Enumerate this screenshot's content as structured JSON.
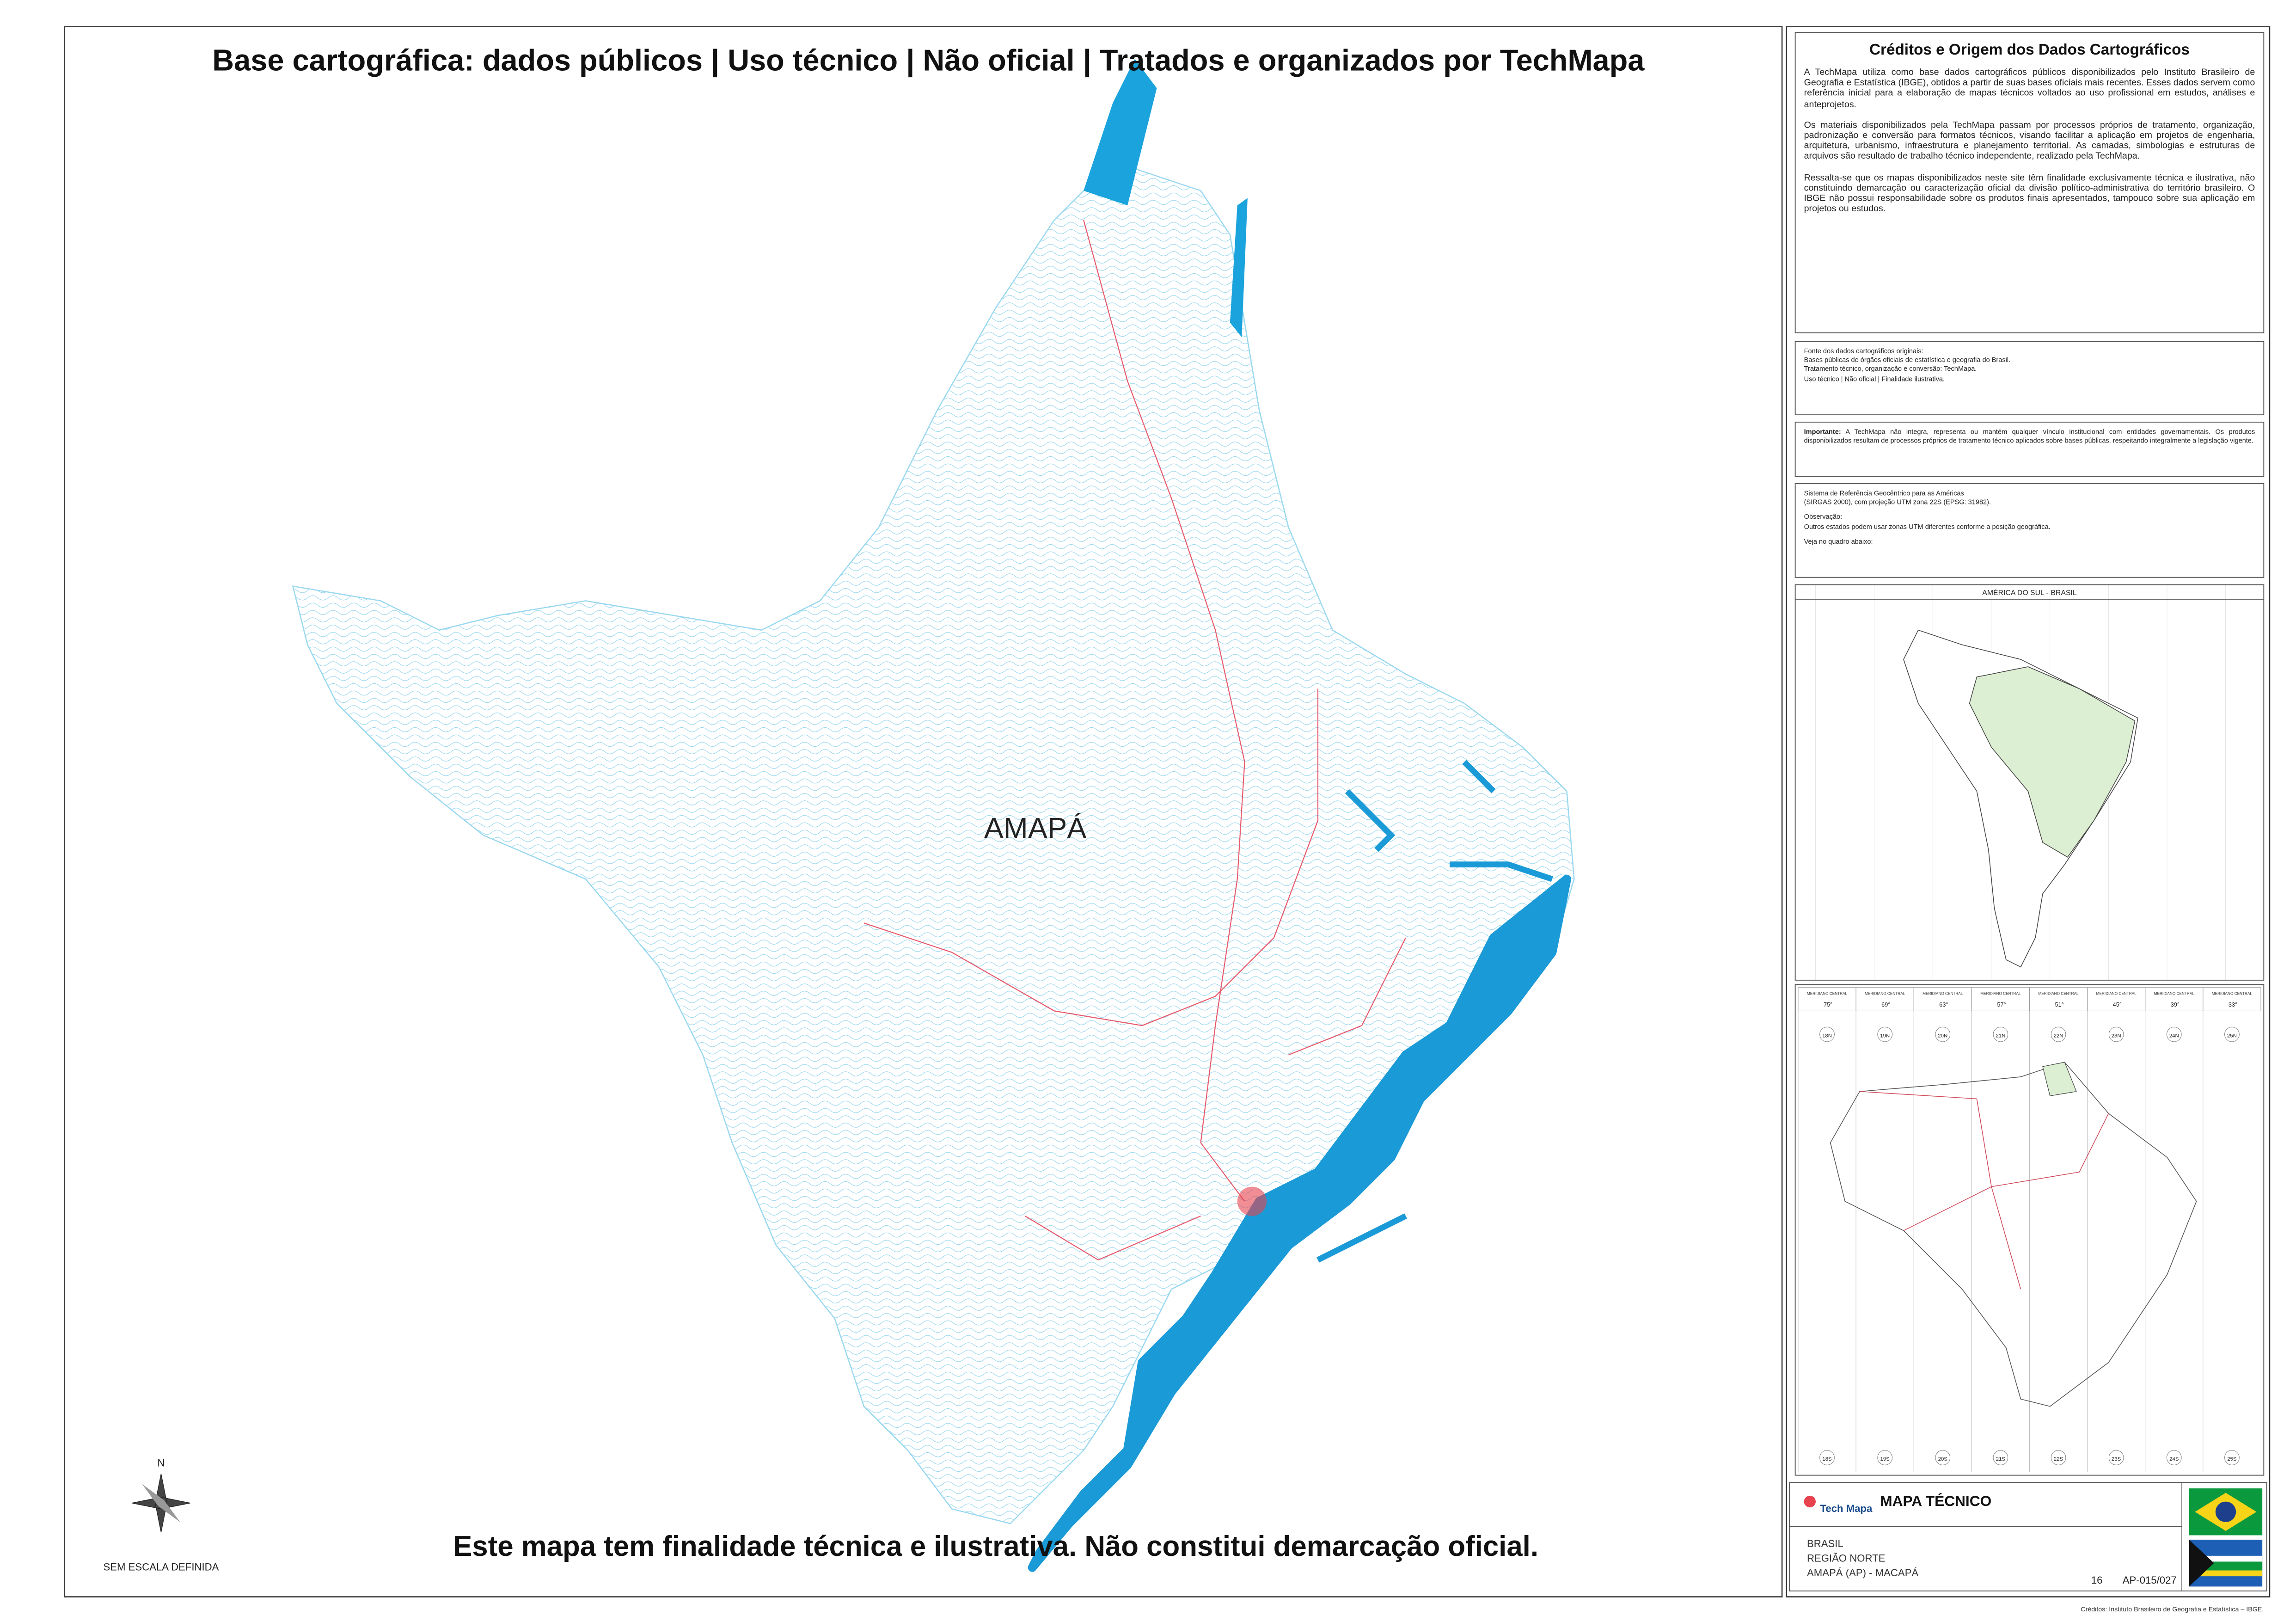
{
  "header": {
    "title": "Base cartográfica: dados públicos | Uso técnico | Não oficial | Tratados e organizados por TechMapa"
  },
  "map": {
    "label": "AMAPÁ"
  },
  "north": {
    "label": "N"
  },
  "scale": {
    "label": "SEM ESCALA DEFINIDA"
  },
  "footer": {
    "disclaimer": "Este mapa tem finalidade técnica e ilustrativa. Não constitui demarcação oficial."
  },
  "credits": {
    "title": "Créditos e Origem dos Dados Cartográficos",
    "paragraphs": [
      "A TechMapa utiliza como base dados cartográficos públicos disponibilizados pelo Instituto Brasileiro de Geografia e Estatística (IBGE), obtidos a partir de suas bases oficiais mais recentes. Esses dados servem como referência inicial para a elaboração de mapas técnicos voltados ao uso profissional em estudos, análises e anteprojetos.",
      "Os materiais disponibilizados pela TechMapa passam por processos próprios de tratamento, organização, padronização e conversão para formatos técnicos, visando facilitar a aplicação em projetos de engenharia, arquitetura, urbanismo, infraestrutura e planejamento territorial. As camadas, simbologias e estruturas de arquivos são resultado de trabalho técnico independente, realizado pela TechMapa.",
      "Ressalta-se que os mapas disponibilizados neste site têm finalidade exclusivamente técnica e ilustrativa, não constituindo demarcação ou caracterização oficial da divisão político-administrativa do território brasileiro. O IBGE não possui responsabilidade sobre os produtos finais apresentados, tampouco sobre sua aplicação em projetos ou estudos."
    ]
  },
  "source": {
    "lines": [
      "Fonte dos dados cartográficos originais:",
      "Bases públicas de órgãos oficiais de estatística e geografia do Brasil.",
      "Tratamento técnico, organização e conversão: TechMapa.",
      "Uso técnico | Não oficial | Finalidade ilustrativa."
    ]
  },
  "important": {
    "label": "Importante:",
    "text": "A TechMapa não integra, representa ou mantém qualquer vínculo institucional com entidades governamentais. Os produtos disponibilizados resultam de processos próprios de tratamento técnico aplicados sobre bases públicas, respeitando integralmente a legislação vigente."
  },
  "reference": {
    "lines": [
      "Sistema de Referência Geocêntrico para as Américas",
      "(SIRGAS 2000), com projeção UTM zona 22S (EPSG: 31982).",
      "Observação:",
      "Outros estados podem usar zonas UTM diferentes conforme a posição geográfica.",
      "Veja no quadro abaixo:"
    ]
  },
  "inset_south_america": {
    "title": "AMÉRICA DO SUL - BRASIL"
  },
  "utm": {
    "meridian_label": "MERIDIANO CENTRAL",
    "meridians": [
      "-75°",
      "-69°",
      "-63°",
      "-57°",
      "-51°",
      "-45°",
      "-39°",
      "-33°"
    ],
    "zones_north": [
      "18N",
      "19N",
      "20N",
      "21N",
      "22N",
      "23N",
      "24N",
      "25N"
    ],
    "zones_south": [
      "18S",
      "19S",
      "20S",
      "21S",
      "22S",
      "23S",
      "24S",
      "25S"
    ]
  },
  "title_block": {
    "logo": "Tech Mapa",
    "heading": "MAPA TÉCNICO",
    "lines": [
      "BRASIL",
      "REGIÃO NORTE",
      "AMAPÁ (AP) - MACAPÁ"
    ],
    "sheet": "16",
    "code": "AP-015/027"
  },
  "credit_line": "Créditos: Instituto Brasileiro de Geografia e Estatística – IBGE."
}
